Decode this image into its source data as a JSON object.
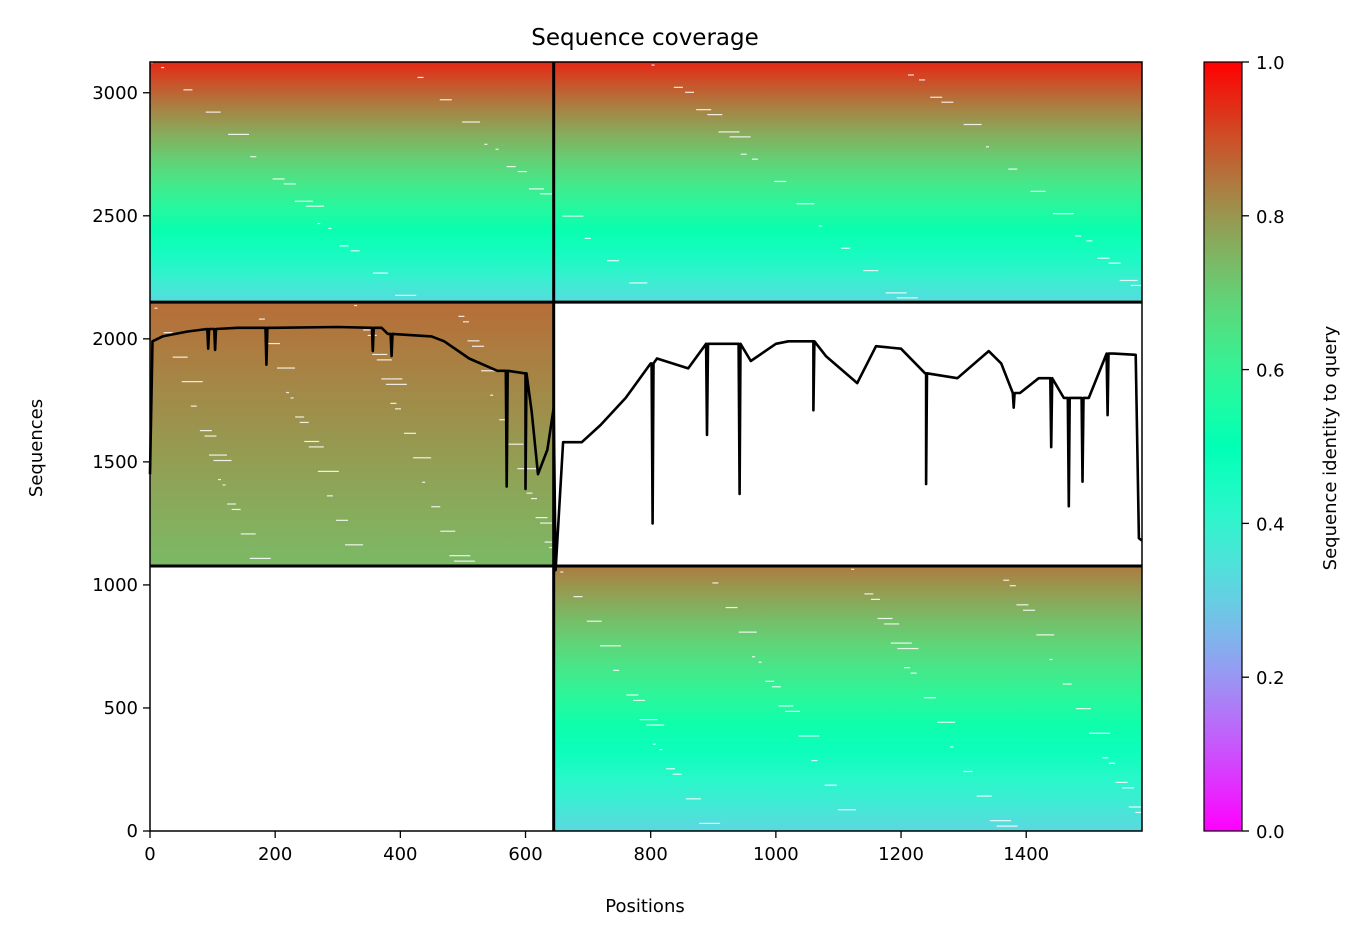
{
  "chart_data": {
    "type": "heatmap",
    "title": "Sequence coverage",
    "xlabel": "Positions",
    "ylabel": "Sequences",
    "xlim": [
      0,
      1585
    ],
    "ylim": [
      0,
      3125
    ],
    "x_ticks": [
      0,
      200,
      400,
      600,
      800,
      1000,
      1200,
      1400
    ],
    "y_ticks": [
      0,
      500,
      1000,
      1500,
      2000,
      2500,
      3000
    ],
    "x_tick_labels": [
      "0",
      "200",
      "400",
      "600",
      "800",
      "1000",
      "1200",
      "1400"
    ],
    "y_tick_labels": [
      "0",
      "500",
      "1000",
      "1500",
      "2000",
      "2500",
      "3000"
    ],
    "grid": false,
    "chain_boundary_x": 645,
    "blocks": [
      {
        "name": "chain-A-only",
        "x": [
          0,
          645
        ],
        "y": [
          1077,
          2149
        ],
        "identity_top": 0.86,
        "identity_bottom": 0.74
      },
      {
        "name": "chain-B-only",
        "x": [
          645,
          1585
        ],
        "y": [
          0,
          1077
        ],
        "identity_top": 0.84,
        "identity_bottom": 0.32
      },
      {
        "name": "paired",
        "x": [
          0,
          1585
        ],
        "y": [
          2149,
          3125
        ],
        "identity_top": 0.95,
        "identity_bottom": 0.33
      }
    ],
    "coverage_line": {
      "color": "#000000",
      "points": [
        [
          0,
          1450
        ],
        [
          4,
          1990
        ],
        [
          20,
          2010
        ],
        [
          60,
          2030
        ],
        [
          100,
          2040
        ],
        [
          140,
          2045
        ],
        [
          200,
          2045
        ],
        [
          300,
          2048
        ],
        [
          370,
          2045
        ],
        [
          380,
          2020
        ],
        [
          450,
          2010
        ],
        [
          470,
          1990
        ],
        [
          510,
          1920
        ],
        [
          555,
          1870
        ],
        [
          600,
          1860
        ],
        [
          610,
          1700
        ],
        [
          620,
          1450
        ],
        [
          635,
          1550
        ],
        [
          645,
          1720
        ],
        [
          648,
          1060
        ],
        [
          660,
          1580
        ],
        [
          690,
          1580
        ],
        [
          720,
          1650
        ],
        [
          760,
          1760
        ],
        [
          800,
          1900
        ],
        [
          810,
          1920
        ],
        [
          860,
          1880
        ],
        [
          900,
          1980
        ],
        [
          930,
          1980
        ],
        [
          960,
          1910
        ],
        [
          1000,
          1980
        ],
        [
          1020,
          1990
        ],
        [
          1060,
          1990
        ],
        [
          1080,
          1930
        ],
        [
          1130,
          1820
        ],
        [
          1160,
          1970
        ],
        [
          1200,
          1960
        ],
        [
          1240,
          1860
        ],
        [
          1290,
          1840
        ],
        [
          1340,
          1950
        ],
        [
          1360,
          1900
        ],
        [
          1390,
          1780
        ],
        [
          1420,
          1840
        ],
        [
          1460,
          1760
        ],
        [
          1500,
          1760
        ],
        [
          1540,
          1940
        ],
        [
          1575,
          1935
        ],
        [
          1580,
          1190
        ],
        [
          1585,
          1180
        ]
      ],
      "dips": [
        [
          93,
          1960
        ],
        [
          104,
          1955
        ],
        [
          186,
          1895
        ],
        [
          356,
          1950
        ],
        [
          386,
          1930
        ],
        [
          570,
          1400
        ],
        [
          600,
          1390
        ],
        [
          803,
          1250
        ],
        [
          890,
          1610
        ],
        [
          942,
          1370
        ],
        [
          1060,
          1710
        ],
        [
          1240,
          1410
        ],
        [
          1380,
          1720
        ],
        [
          1440,
          1560
        ],
        [
          1468,
          1320
        ],
        [
          1490,
          1420
        ],
        [
          1530,
          1690
        ]
      ]
    },
    "colorbar": {
      "label": "Sequence identity to query",
      "range": [
        0,
        1
      ],
      "ticks": [
        0.0,
        0.2,
        0.4,
        0.6,
        0.8,
        1.0
      ],
      "tick_labels": [
        "0.0",
        "0.2",
        "0.4",
        "0.6",
        "0.8",
        "1.0"
      ],
      "colormap": "rainbow"
    }
  }
}
